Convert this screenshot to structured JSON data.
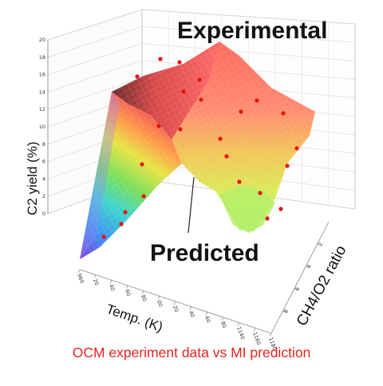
{
  "caption": "OCM experiment data vs MI prediction",
  "annotations": {
    "experimental": "Experimental",
    "predicted": "Predicted"
  },
  "colors": {
    "caption": "#e8231f",
    "points": "#e8120c",
    "surface_high": "#ff4b4b",
    "surface_low": "#9b5bff"
  },
  "chart_data": {
    "type": "surface-3d",
    "zlabel": "C2 yield (%)",
    "xlabel": "Temp. (K)",
    "ylabel": "CH4/O2 ratio",
    "z_ticks": [
      "0",
      "2",
      "4",
      "6",
      "8",
      "10",
      "12",
      "14",
      "16",
      "18",
      "20"
    ],
    "x_ticks": [
      "960",
      "20",
      "40",
      "60",
      "80",
      "00",
      "20",
      "40",
      "60",
      "80",
      "1140",
      "1160",
      "1180"
    ],
    "y_ticks": [
      "2",
      "4",
      "6",
      "8"
    ],
    "zlim": [
      0,
      20
    ],
    "series": [
      {
        "name": "Predicted",
        "kind": "surface"
      },
      {
        "name": "Experimental",
        "kind": "scatter"
      }
    ]
  }
}
